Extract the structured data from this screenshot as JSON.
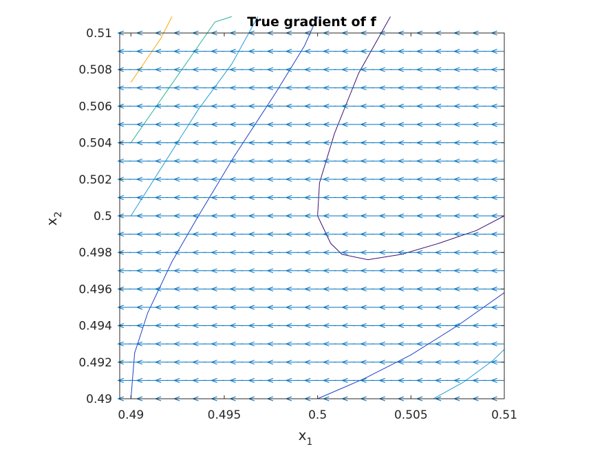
{
  "chart_data": {
    "type": "quiver-contour",
    "title": "True gradient of f",
    "xlabel": {
      "base": "x",
      "sub": "1"
    },
    "ylabel": {
      "base": "x",
      "sub": "2"
    },
    "xlim": [
      0.49,
      0.51
    ],
    "ylim": [
      0.49,
      0.51
    ],
    "grid": false,
    "xticks": [
      0.49,
      0.495,
      0.5,
      0.505,
      0.51
    ],
    "xtick_labels": [
      "0.49",
      "0.495",
      "0.5",
      "0.505",
      "0.51"
    ],
    "yticks": [
      0.49,
      0.492,
      0.494,
      0.496,
      0.498,
      0.5,
      0.502,
      0.504,
      0.506,
      0.508,
      0.51
    ],
    "ytick_labels": [
      "0.49",
      "0.492",
      "0.494",
      "0.496",
      "0.498",
      "0.5",
      "0.502",
      "0.504",
      "0.506",
      "0.508",
      "0.51"
    ],
    "quiver": {
      "color": "#0072bd",
      "direction": "negative-x",
      "x_positions": [
        0.49,
        0.491,
        0.492,
        0.493,
        0.494,
        0.495,
        0.496,
        0.497,
        0.498,
        0.499,
        0.5,
        0.501,
        0.502,
        0.503,
        0.504,
        0.505,
        0.506,
        0.507,
        0.508,
        0.509,
        0.51
      ],
      "y_positions": [
        0.49,
        0.491,
        0.492,
        0.493,
        0.494,
        0.495,
        0.496,
        0.497,
        0.498,
        0.499,
        0.5,
        0.501,
        0.502,
        0.503,
        0.504,
        0.505,
        0.506,
        0.507,
        0.508,
        0.509,
        0.51
      ],
      "u": -0.0011,
      "v": 0.0
    },
    "contours": [
      {
        "color": "#ffa500",
        "points": [
          [
            0.49,
            0.5073
          ],
          [
            0.4908,
            0.5085
          ],
          [
            0.4916,
            0.5097
          ],
          [
            0.4922,
            0.5109
          ]
        ]
      },
      {
        "color": "#20b090",
        "points": [
          [
            0.49,
            0.504
          ],
          [
            0.4915,
            0.5062
          ],
          [
            0.493,
            0.5084
          ],
          [
            0.4945,
            0.5106
          ],
          [
            0.4954,
            0.5109
          ]
        ]
      },
      {
        "color": "#1e9bd7",
        "points": [
          [
            0.49,
            0.5
          ],
          [
            0.4918,
            0.5029
          ],
          [
            0.4936,
            0.5058
          ],
          [
            0.4954,
            0.5083
          ],
          [
            0.4968,
            0.5109
          ]
        ]
      },
      {
        "color": "#1a3ec8",
        "points": [
          [
            0.49,
            0.49
          ],
          [
            0.4902,
            0.4925
          ],
          [
            0.4909,
            0.4947
          ],
          [
            0.4922,
            0.4975
          ],
          [
            0.4935,
            0.4998
          ],
          [
            0.4955,
            0.5032
          ],
          [
            0.4978,
            0.5068
          ],
          [
            0.4993,
            0.5093
          ],
          [
            0.5,
            0.5109
          ]
        ]
      },
      {
        "color": "#3b0f70",
        "points": [
          [
            0.5039,
            0.5109
          ],
          [
            0.5022,
            0.5078
          ],
          [
            0.5009,
            0.5045
          ],
          [
            0.5001,
            0.5018
          ],
          [
            0.5,
            0.5
          ],
          [
            0.5007,
            0.4985
          ],
          [
            0.5013,
            0.4979
          ],
          [
            0.5027,
            0.4976
          ],
          [
            0.5045,
            0.4979
          ],
          [
            0.5065,
            0.4985
          ],
          [
            0.5085,
            0.4992
          ],
          [
            0.51,
            0.5
          ]
        ]
      },
      {
        "color": "#1a3ec8",
        "points": [
          [
            0.5,
            0.49
          ],
          [
            0.5025,
            0.4911
          ],
          [
            0.505,
            0.4924
          ],
          [
            0.5075,
            0.494
          ],
          [
            0.51,
            0.4958
          ]
        ]
      },
      {
        "color": "#1e9bd7",
        "points": [
          [
            0.5062,
            0.49
          ],
          [
            0.5078,
            0.4909
          ],
          [
            0.5094,
            0.4921
          ],
          [
            0.51,
            0.4927
          ]
        ]
      }
    ]
  }
}
